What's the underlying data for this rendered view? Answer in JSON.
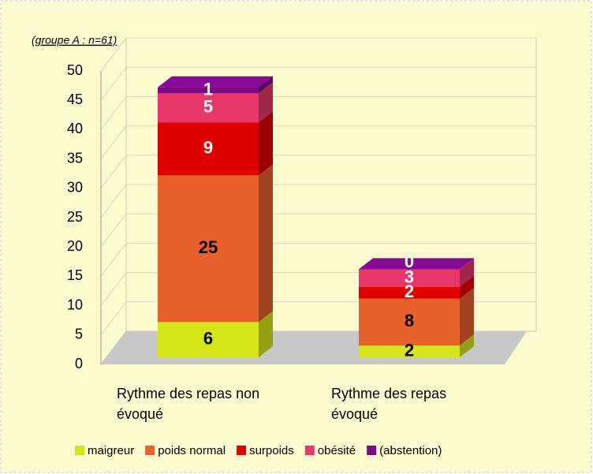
{
  "chart_data": {
    "type": "stacked_bar_3d",
    "annotation": "(groupe A : n=61)",
    "categories": [
      "Rythme des repas non évoqué",
      "Rythme des repas évoqué"
    ],
    "series": [
      {
        "name": "maigreur",
        "color": "#d4e61a",
        "values": [
          6,
          2
        ]
      },
      {
        "name": "poids normal",
        "color": "#e8602c",
        "values": [
          25,
          8
        ]
      },
      {
        "name": "surpoids",
        "color": "#e00000",
        "values": [
          9,
          2
        ]
      },
      {
        "name": "obésité",
        "color": "#e8386a",
        "values": [
          5,
          3
        ]
      },
      {
        "name": "(abstention)",
        "color": "#7a0a8a",
        "values": [
          1,
          0
        ]
      }
    ],
    "ylim": [
      0,
      50
    ],
    "yticks": [
      0,
      5,
      10,
      15,
      20,
      25,
      30,
      35,
      40,
      45,
      50
    ],
    "grid": true,
    "legend": "bottom"
  }
}
